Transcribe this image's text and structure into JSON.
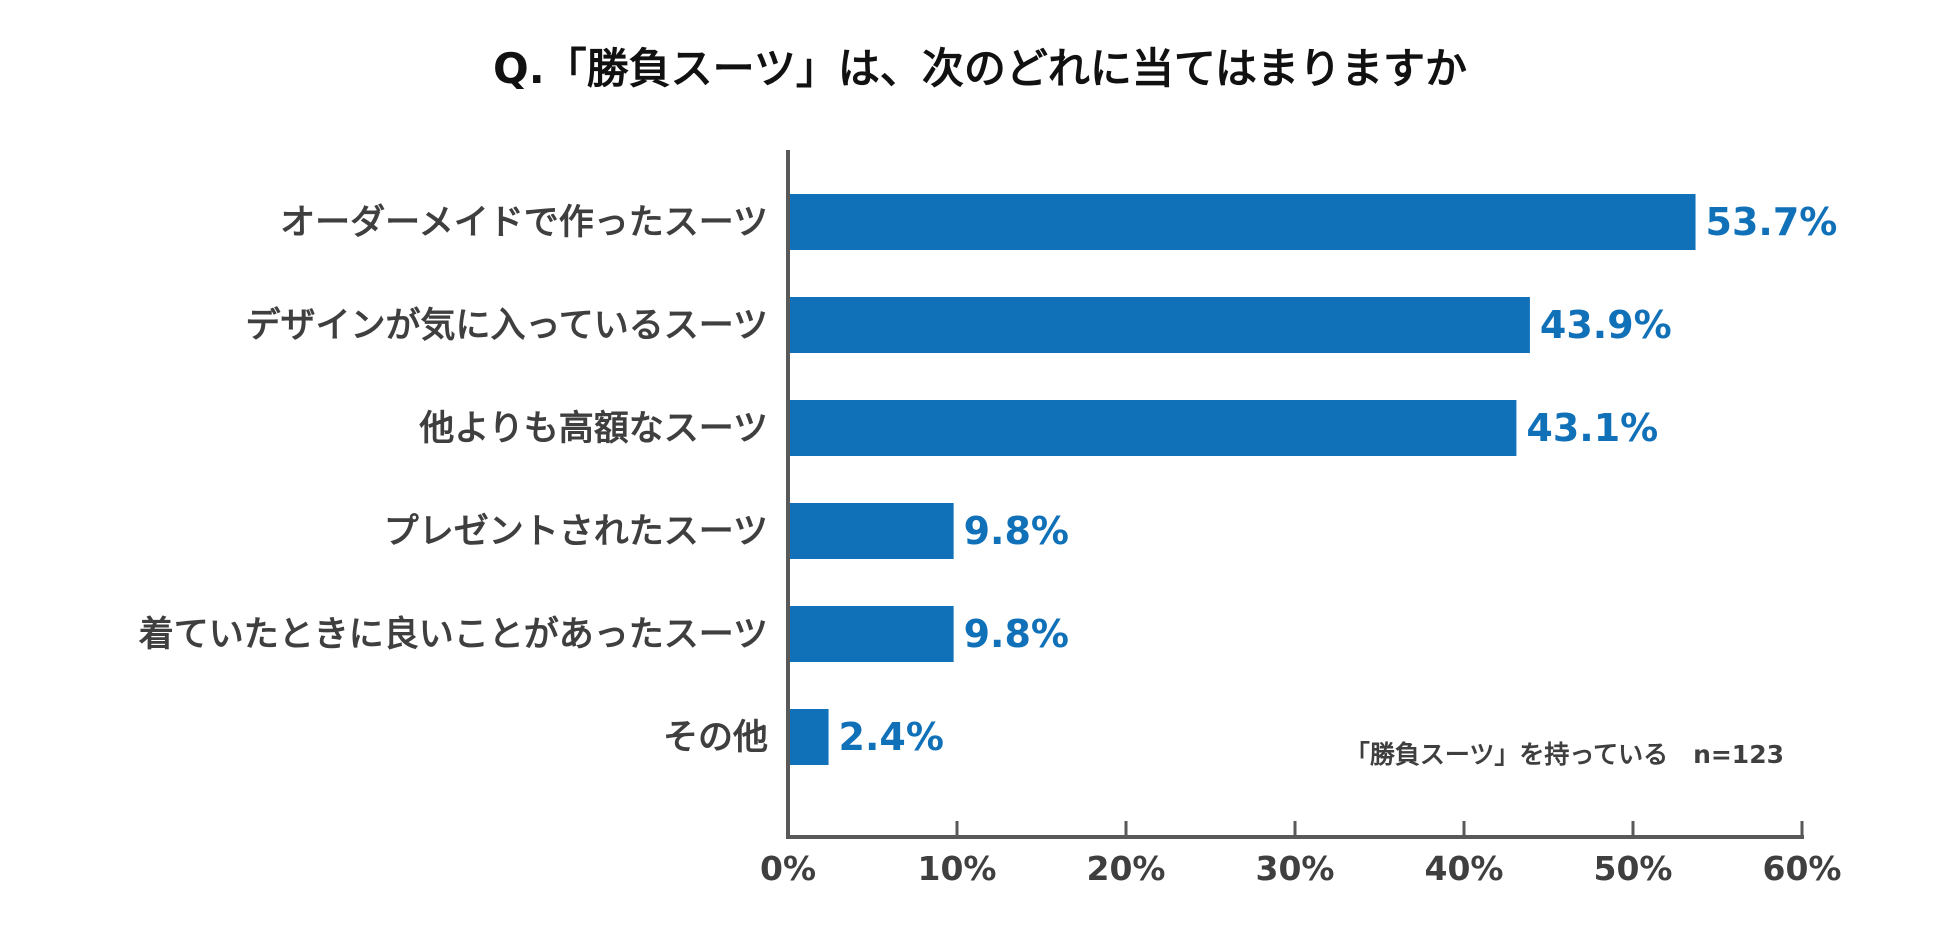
{
  "chart_data": {
    "type": "bar",
    "orientation": "horizontal",
    "title": "Q.「勝負スーツ」は、次のどれに当てはまりますか",
    "categories": [
      "オーダーメイドで作ったスーツ",
      "デザインが気に入っているスーツ",
      "他よりも高額なスーツ",
      "プレゼントされたスーツ",
      "着ていたときに良いことがあったスーツ",
      "その他"
    ],
    "values": [
      53.7,
      43.9,
      43.1,
      9.8,
      9.8,
      2.4
    ],
    "value_labels": [
      "53.7%",
      "43.9%",
      "43.1%",
      "9.8%",
      "9.8%",
      "2.4%"
    ],
    "xlim": [
      0,
      60
    ],
    "x_ticks": [
      0,
      10,
      20,
      30,
      40,
      50,
      60
    ],
    "x_tick_labels": [
      "0%",
      "10%",
      "20%",
      "30%",
      "40%",
      "50%",
      "60%"
    ],
    "xlabel": "",
    "ylabel": "",
    "grid": false,
    "note": "「勝負スーツ」を持っている　n=123",
    "colors": {
      "bar": "#1070b8",
      "value_label": "#1070b8",
      "axis": "#595959"
    }
  }
}
